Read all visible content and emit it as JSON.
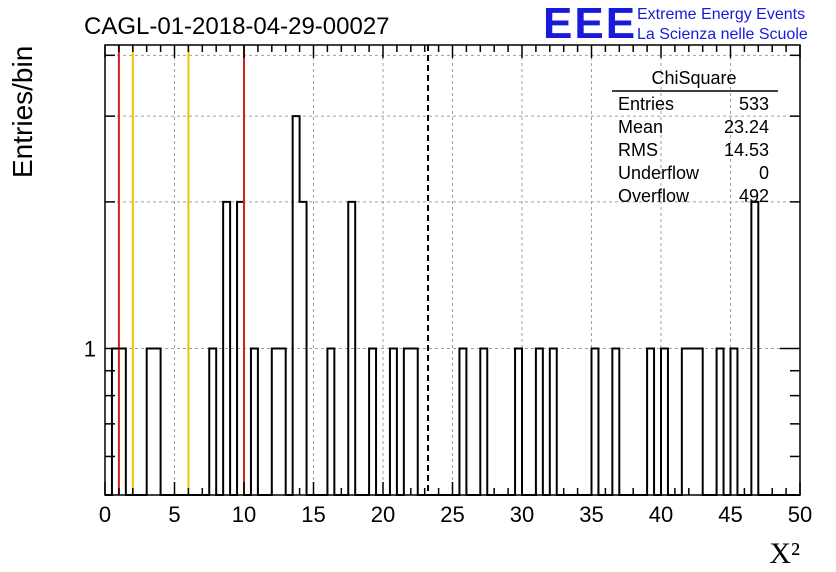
{
  "chart_data": {
    "type": "histogram",
    "title": "CAGL-01-2018-04-29-00027",
    "xlabel": "X²",
    "ylabel": "Entries/bin",
    "xlim": [
      0,
      50
    ],
    "log_y": true,
    "ylim": [
      0.5,
      4.2
    ],
    "grid": true,
    "x_ticks": [
      0,
      5,
      10,
      15,
      20,
      25,
      30,
      35,
      40,
      45,
      50
    ],
    "y_tick_labels": [
      {
        "value": 1,
        "label": "1"
      }
    ],
    "bin_width": 0.5,
    "bins": [
      {
        "x": 0.5,
        "count": 1
      },
      {
        "x": 1.0,
        "count": 1
      },
      {
        "x": 3.0,
        "count": 1
      },
      {
        "x": 3.5,
        "count": 1
      },
      {
        "x": 7.5,
        "count": 1
      },
      {
        "x": 8.5,
        "count": 2
      },
      {
        "x": 9.5,
        "count": 2
      },
      {
        "x": 10.5,
        "count": 1
      },
      {
        "x": 12.0,
        "count": 1
      },
      {
        "x": 12.5,
        "count": 1
      },
      {
        "x": 13.5,
        "count": 3
      },
      {
        "x": 14.0,
        "count": 2
      },
      {
        "x": 16.0,
        "count": 1
      },
      {
        "x": 17.5,
        "count": 2
      },
      {
        "x": 19.0,
        "count": 1
      },
      {
        "x": 20.5,
        "count": 1
      },
      {
        "x": 21.5,
        "count": 1
      },
      {
        "x": 22.0,
        "count": 1
      },
      {
        "x": 25.5,
        "count": 1
      },
      {
        "x": 27.0,
        "count": 1
      },
      {
        "x": 29.5,
        "count": 1
      },
      {
        "x": 31.0,
        "count": 1
      },
      {
        "x": 32.0,
        "count": 1
      },
      {
        "x": 35.0,
        "count": 1
      },
      {
        "x": 36.5,
        "count": 1
      },
      {
        "x": 39.0,
        "count": 1
      },
      {
        "x": 40.0,
        "count": 1
      },
      {
        "x": 41.5,
        "count": 1
      },
      {
        "x": 42.0,
        "count": 1
      },
      {
        "x": 42.5,
        "count": 1
      },
      {
        "x": 44.0,
        "count": 1
      },
      {
        "x": 45.0,
        "count": 1
      },
      {
        "x": 46.5,
        "count": 2
      }
    ],
    "vertical_lines": [
      {
        "x": 1.0,
        "color": "#d42020",
        "style": "solid"
      },
      {
        "x": 2.0,
        "color": "#f2c200",
        "style": "solid"
      },
      {
        "x": 6.0,
        "color": "#f2c200",
        "style": "solid"
      },
      {
        "x": 10.0,
        "color": "#d42020",
        "style": "solid"
      },
      {
        "x": 23.24,
        "color": "#000000",
        "style": "dashed"
      }
    ],
    "stats_box": {
      "title": "ChiSquare",
      "rows": [
        {
          "label": "Entries",
          "value": "533"
        },
        {
          "label": "Mean",
          "value": "23.24"
        },
        {
          "label": "RMS",
          "value": "14.53"
        },
        {
          "label": "Underflow",
          "value": "0"
        },
        {
          "label": "Overflow",
          "value": "492"
        }
      ]
    }
  },
  "logo": {
    "mark": "EEE",
    "line1": "Extreme Energy Events",
    "line2": "La Scienza nelle Scuole",
    "color": "#1a1adc"
  }
}
